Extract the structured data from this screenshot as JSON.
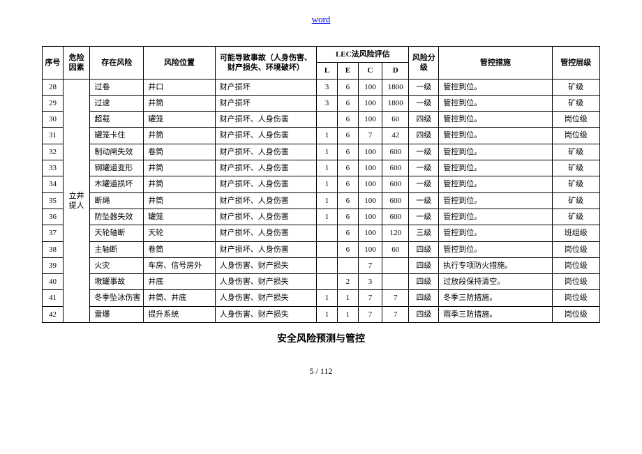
{
  "header_link": "word",
  "subtitle": "安全风险预测与管控",
  "page_footer": "5 / 112",
  "table": {
    "head": {
      "seq": "序号",
      "factor": "危险因素",
      "risk": "存在风险",
      "location": "风险位置",
      "accident": "可能导致事故（人身伤害、财产损失、环境破坏）",
      "lec_group": "LEC法风险评估",
      "L": "L",
      "E": "E",
      "C": "C",
      "D": "D",
      "level": "风险分级",
      "measure": "管控措施",
      "ctrl_level": "管控层级"
    },
    "factor_label": "立井提人",
    "rows": [
      {
        "seq": "28",
        "risk": "过卷",
        "loc": "井口",
        "acc": "财产损坏",
        "L": "3",
        "E": "6",
        "C": "100",
        "D": "1800",
        "lvl": "一级",
        "meas": "管控到位。",
        "clvl": "矿级"
      },
      {
        "seq": "29",
        "risk": "过速",
        "loc": "井筒",
        "acc": "财产损坏",
        "L": "3",
        "E": "6",
        "C": "100",
        "D": "1800",
        "lvl": "一级",
        "meas": "管控到位。",
        "clvl": "矿级"
      },
      {
        "seq": "30",
        "risk": "超载",
        "loc": "罐笼",
        "acc": "财产损坏、人身伤害",
        "L": "",
        "E": "6",
        "C": "100",
        "D": "60",
        "lvl": "四级",
        "meas": "管控到位。",
        "clvl": "岗位级"
      },
      {
        "seq": "31",
        "risk": "罐笼卡住",
        "loc": "井筒",
        "acc": "财产损坏、人身伤害",
        "L": "1",
        "E": "6",
        "C": "7",
        "D": "42",
        "lvl": "四级",
        "meas": "管控到位。",
        "clvl": "岗位级"
      },
      {
        "seq": "32",
        "risk": "制动闸失效",
        "loc": "卷筒",
        "acc": "财产损坏、人身伤害",
        "L": "1",
        "E": "6",
        "C": "100",
        "D": "600",
        "lvl": "一级",
        "meas": "管控到位。",
        "clvl": "矿级"
      },
      {
        "seq": "33",
        "risk": "钢罐道变形",
        "loc": "井筒",
        "acc": "财产损坏、人身伤害",
        "L": "1",
        "E": "6",
        "C": "100",
        "D": "600",
        "lvl": "一级",
        "meas": "管控到位。",
        "clvl": "矿级"
      },
      {
        "seq": "34",
        "risk": "木罐道损坏",
        "loc": "井筒",
        "acc": "财产损坏、人身伤害",
        "L": "1",
        "E": "6",
        "C": "100",
        "D": "600",
        "lvl": "一级",
        "meas": "管控到位。",
        "clvl": "矿级"
      },
      {
        "seq": "35",
        "risk": "断绳",
        "loc": "井筒",
        "acc": "财产损坏、人身伤害",
        "L": "1",
        "E": "6",
        "C": "100",
        "D": "600",
        "lvl": "一级",
        "meas": "管控到位。",
        "clvl": "矿级"
      },
      {
        "seq": "36",
        "risk": "防坠器失效",
        "loc": "罐笼",
        "acc": "财产损坏、人身伤害",
        "L": "1",
        "E": "6",
        "C": "100",
        "D": "600",
        "lvl": "一级",
        "meas": "管控到位。",
        "clvl": "矿级"
      },
      {
        "seq": "37",
        "risk": "天轮轴断",
        "loc": "天轮",
        "acc": "财产损坏、人身伤害",
        "L": "",
        "E": "6",
        "C": "100",
        "D": "120",
        "lvl": "三级",
        "meas": "管控到位。",
        "clvl": "班组级"
      },
      {
        "seq": "38",
        "risk": "主轴断",
        "loc": "卷筒",
        "acc": "财产损坏、人身伤害",
        "L": "",
        "E": "6",
        "C": "100",
        "D": "60",
        "lvl": "四级",
        "meas": "管控到位。",
        "clvl": "岗位级"
      },
      {
        "seq": "39",
        "risk": "火灾",
        "loc": "车房、信号房外",
        "acc": "人身伤害、财产损失",
        "L": "",
        "E": "",
        "C": "7",
        "D": "",
        "lvl": "四级",
        "meas": "执行专项防火措施。",
        "clvl": "岗位级"
      },
      {
        "seq": "40",
        "risk": "墩罐事故",
        "loc": "井底",
        "acc": "人身伤害、财产损失",
        "L": "",
        "E": "2",
        "C": "3",
        "D": "",
        "lvl": "四级",
        "meas": "过放段保持清空。",
        "clvl": "岗位级"
      },
      {
        "seq": "41",
        "risk": "冬季坠冰伤害",
        "loc": "井筒、井底",
        "acc": "人身伤害、财产损失",
        "L": "1",
        "E": "1",
        "C": "7",
        "D": "7",
        "lvl": "四级",
        "meas": "冬季三防措施。",
        "clvl": "岗位级"
      },
      {
        "seq": "42",
        "risk": "雷爆",
        "loc": "提升系统",
        "acc": "人身伤害、财产损失",
        "L": "1",
        "E": "1",
        "C": "7",
        "D": "7",
        "lvl": "四级",
        "meas": "雨季三防措施。",
        "clvl": "岗位级"
      }
    ]
  }
}
